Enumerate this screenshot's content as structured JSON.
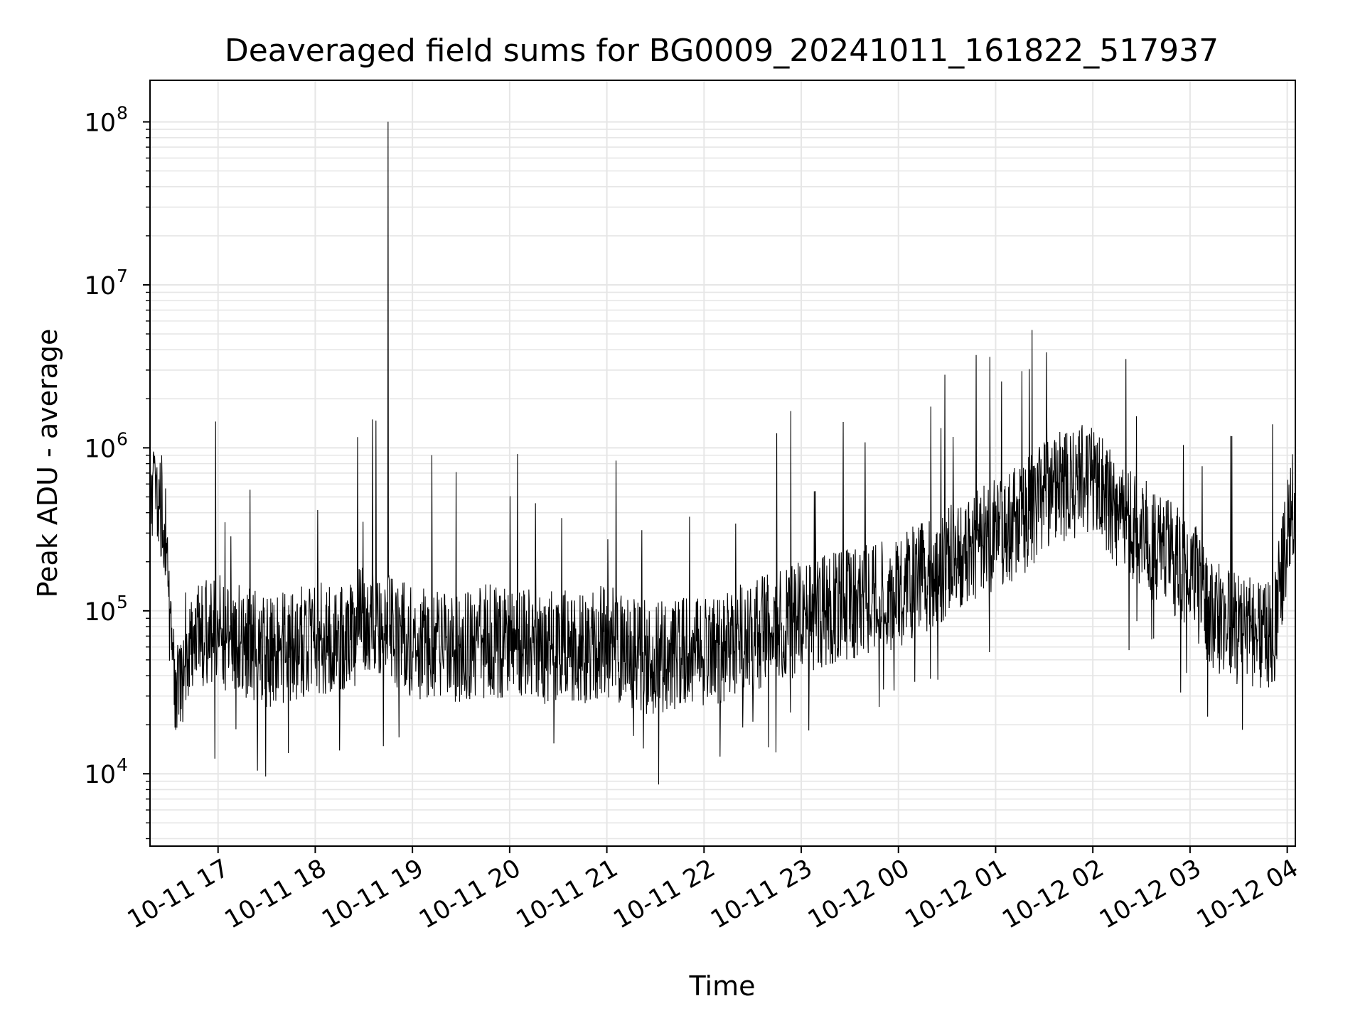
{
  "chart_data": {
    "type": "line",
    "title": "Deaveraged field sums for BG0009_20241011_161822_517937",
    "xlabel": "Time",
    "ylabel": "Peak ADU - average",
    "yscale": "log",
    "ylim": [
      3600,
      180000000
    ],
    "xlim": [
      "2024-10-11 16:18",
      "2024-10-12 04:05"
    ],
    "grid": true,
    "line_color": "#000000",
    "grid_color": "#e6e6e6",
    "x_ticks": [
      {
        "t": "2024-10-11 17:00",
        "label": "10-11 17"
      },
      {
        "t": "2024-10-11 18:00",
        "label": "10-11 18"
      },
      {
        "t": "2024-10-11 19:00",
        "label": "10-11 19"
      },
      {
        "t": "2024-10-11 20:00",
        "label": "10-11 20"
      },
      {
        "t": "2024-10-11 21:00",
        "label": "10-11 21"
      },
      {
        "t": "2024-10-11 22:00",
        "label": "10-11 22"
      },
      {
        "t": "2024-10-11 23:00",
        "label": "10-11 23"
      },
      {
        "t": "2024-10-12 00:00",
        "label": "10-12 00"
      },
      {
        "t": "2024-10-12 01:00",
        "label": "10-12 01"
      },
      {
        "t": "2024-10-12 02:00",
        "label": "10-12 02"
      },
      {
        "t": "2024-10-12 03:00",
        "label": "10-12 03"
      },
      {
        "t": "2024-10-12 04:00",
        "label": "10-12 04"
      }
    ],
    "y_ticks": [
      {
        "value": 10000,
        "base": "10",
        "exp": "4"
      },
      {
        "value": 100000,
        "base": "10",
        "exp": "5"
      },
      {
        "value": 1000000,
        "base": "10",
        "exp": "6"
      },
      {
        "value": 10000000,
        "base": "10",
        "exp": "7"
      },
      {
        "value": 100000000,
        "base": "10",
        "exp": "8"
      }
    ],
    "series": [
      {
        "x": [
          "2024-10-11 16:18",
          "2024-10-11 16:22",
          "2024-10-11 16:27",
          "2024-10-11 16:30",
          "2024-10-11 16:33",
          "2024-10-11 16:36",
          "2024-10-11 16:40",
          "2024-10-11 16:45",
          "2024-10-11 16:50",
          "2024-10-11 17:00",
          "2024-10-11 17:15",
          "2024-10-11 17:30",
          "2024-10-11 17:45",
          "2024-10-11 18:00",
          "2024-10-11 18:15",
          "2024-10-11 18:30",
          "2024-10-11 18:40",
          "2024-10-11 18:45",
          "2024-10-11 18:50",
          "2024-10-11 19:00",
          "2024-10-11 19:15",
          "2024-10-11 19:30",
          "2024-10-11 19:45",
          "2024-10-11 20:00",
          "2024-10-11 20:15",
          "2024-10-11 20:30",
          "2024-10-11 20:45",
          "2024-10-11 21:00",
          "2024-10-11 21:15",
          "2024-10-11 21:30",
          "2024-10-11 21:45",
          "2024-10-11 22:00",
          "2024-10-11 22:15",
          "2024-10-11 22:30",
          "2024-10-11 22:45",
          "2024-10-11 23:00",
          "2024-10-11 23:15",
          "2024-10-11 23:30",
          "2024-10-11 23:45",
          "2024-10-12 00:00",
          "2024-10-12 00:15",
          "2024-10-12 00:30",
          "2024-10-12 00:45",
          "2024-10-12 01:00",
          "2024-10-12 01:15",
          "2024-10-12 01:30",
          "2024-10-12 01:45",
          "2024-10-12 02:00",
          "2024-10-12 02:15",
          "2024-10-12 02:30",
          "2024-10-12 02:45",
          "2024-10-12 03:00",
          "2024-10-12 03:15",
          "2024-10-12 03:30",
          "2024-10-12 03:45",
          "2024-10-12 03:52",
          "2024-10-12 04:00",
          "2024-10-12 04:05"
        ],
        "y": [
          500000,
          600000,
          350000,
          70000,
          40000,
          30000,
          60000,
          80000,
          70000,
          75000,
          65000,
          55000,
          60000,
          70000,
          65000,
          85000,
          80000,
          100000000,
          75000,
          65000,
          60000,
          60000,
          65000,
          65000,
          60000,
          60000,
          60000,
          65000,
          55000,
          50000,
          55000,
          55000,
          60000,
          70000,
          80000,
          90000,
          100000,
          110000,
          120000,
          130000,
          160000,
          200000,
          250000,
          300000,
          350000,
          500000,
          600000,
          700000,
          400000,
          300000,
          220000,
          180000,
          90000,
          75000,
          70000,
          80000,
          300000,
          500000
        ]
      }
    ]
  }
}
